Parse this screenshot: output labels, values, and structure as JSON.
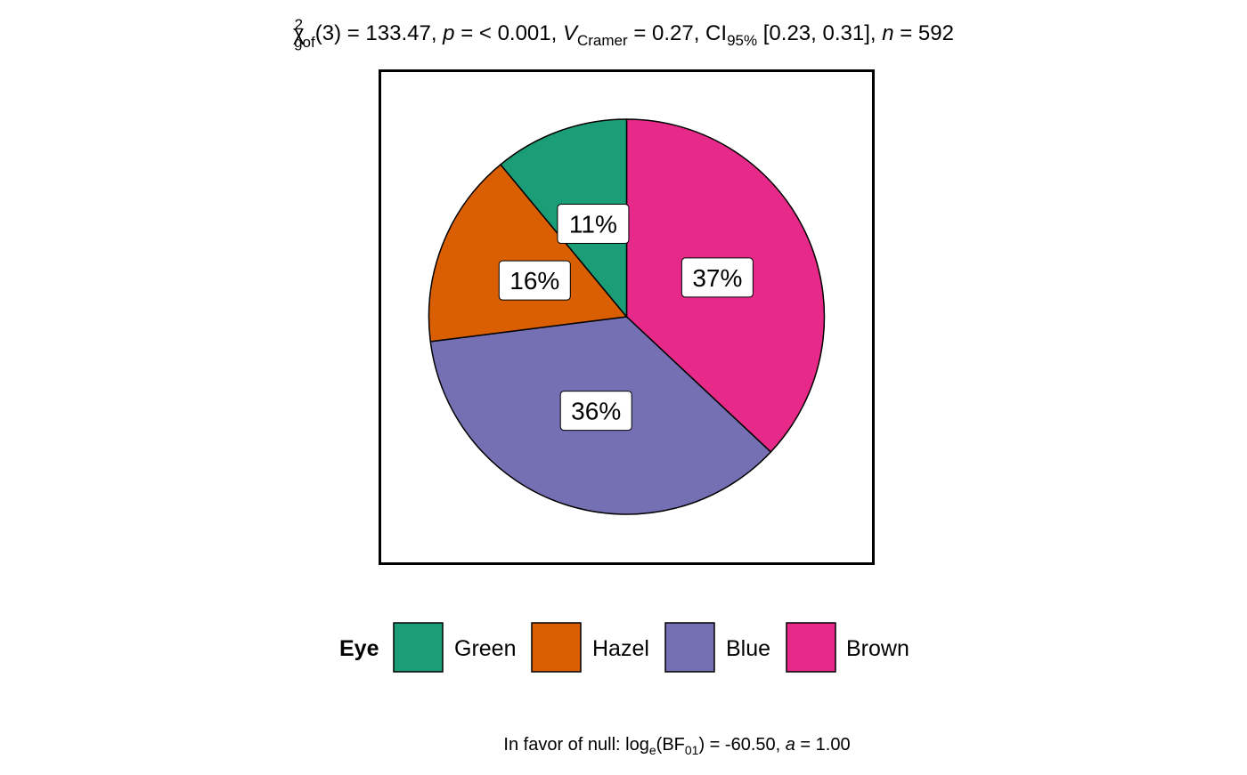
{
  "chart_data": {
    "type": "pie",
    "title": {
      "chi_symbol": "χ",
      "chi_sup": "2",
      "chi_sub": "gof",
      "df_text": "(3) = 133.47, ",
      "p_label": "p",
      "p_text": " = < 0.001, ",
      "v_label": "V",
      "v_sub": "Cramer",
      "v_text": " = 0.27, CI",
      "ci_sub": "95%",
      "ci_text": " [0.23, 0.31], ",
      "n_label": "n",
      "n_text": " = 592"
    },
    "caption": {
      "prefix": "In favor of null: log",
      "log_sub": "e",
      "bf_open": "(BF",
      "bf_sub": "01",
      "bf_text": ") = -60.50, ",
      "a_label": "a",
      "a_text": " = 1.00"
    },
    "legend": {
      "title": "Eye",
      "position": "bottom"
    },
    "slices": [
      {
        "category": "Brown",
        "percent": 37,
        "label": "37%",
        "color": "#E7298A"
      },
      {
        "category": "Blue",
        "percent": 36,
        "label": "36%",
        "color": "#7570B3"
      },
      {
        "category": "Hazel",
        "percent": 16,
        "label": "16%",
        "color": "#D95F02"
      },
      {
        "category": "Green",
        "percent": 11,
        "label": "11%",
        "color": "#1B9E77"
      }
    ],
    "legend_order": [
      "Green",
      "Hazel",
      "Blue",
      "Brown"
    ]
  }
}
